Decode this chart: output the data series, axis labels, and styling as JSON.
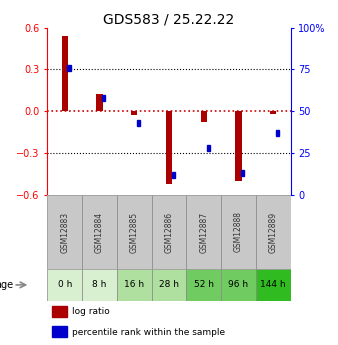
{
  "title": "GDS583 / 25.22.22",
  "samples": [
    "GSM12883",
    "GSM12884",
    "GSM12885",
    "GSM12886",
    "GSM12887",
    "GSM12888",
    "GSM12889"
  ],
  "ages": [
    "0 h",
    "8 h",
    "16 h",
    "28 h",
    "52 h",
    "96 h",
    "144 h"
  ],
  "log_ratio": [
    0.54,
    0.12,
    -0.03,
    -0.52,
    -0.08,
    -0.5,
    -0.02
  ],
  "percentile_raw": [
    76,
    58,
    43,
    12,
    28,
    13,
    37
  ],
  "ylim": [
    -0.6,
    0.6
  ],
  "yticks_left": [
    -0.6,
    -0.3,
    0.0,
    0.3,
    0.6
  ],
  "yticks_right": [
    0,
    25,
    50,
    75,
    100
  ],
  "age_colors": [
    "#d8f0d0",
    "#d8f0d0",
    "#b0e0a0",
    "#b0e0a0",
    "#70cc60",
    "#70cc60",
    "#30bb20"
  ],
  "bar_color_red": "#aa0000",
  "bar_color_blue": "#0000cc",
  "zero_line_color": "#cc0000",
  "grid_line_color": "#000000",
  "background_color": "#ffffff",
  "sample_box_color": "#c8c8c8"
}
